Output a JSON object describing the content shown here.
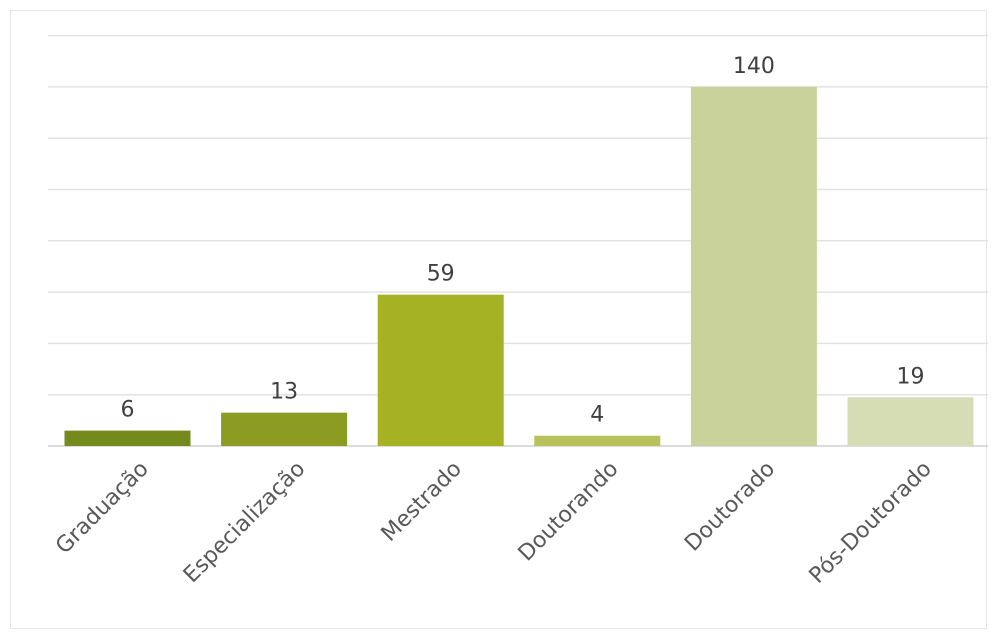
{
  "chart_data": {
    "type": "bar",
    "categories": [
      "Graduação",
      "Especialização",
      "Mestrado",
      "Doutorando",
      "Doutorado",
      "Pós-Doutorado"
    ],
    "values": [
      6,
      13,
      59,
      4,
      140,
      19
    ],
    "data_labels": [
      "6",
      "13",
      "59",
      "4",
      "140",
      "19"
    ],
    "colors": [
      "#758a1c",
      "#8c9c22",
      "#a4b223",
      "#b7c25a",
      "#c8d29a",
      "#d6dcb4"
    ],
    "ylim": [
      0,
      160
    ],
    "gridlines": true,
    "legend": "none",
    "title": "",
    "xlabel": "",
    "ylabel": ""
  }
}
